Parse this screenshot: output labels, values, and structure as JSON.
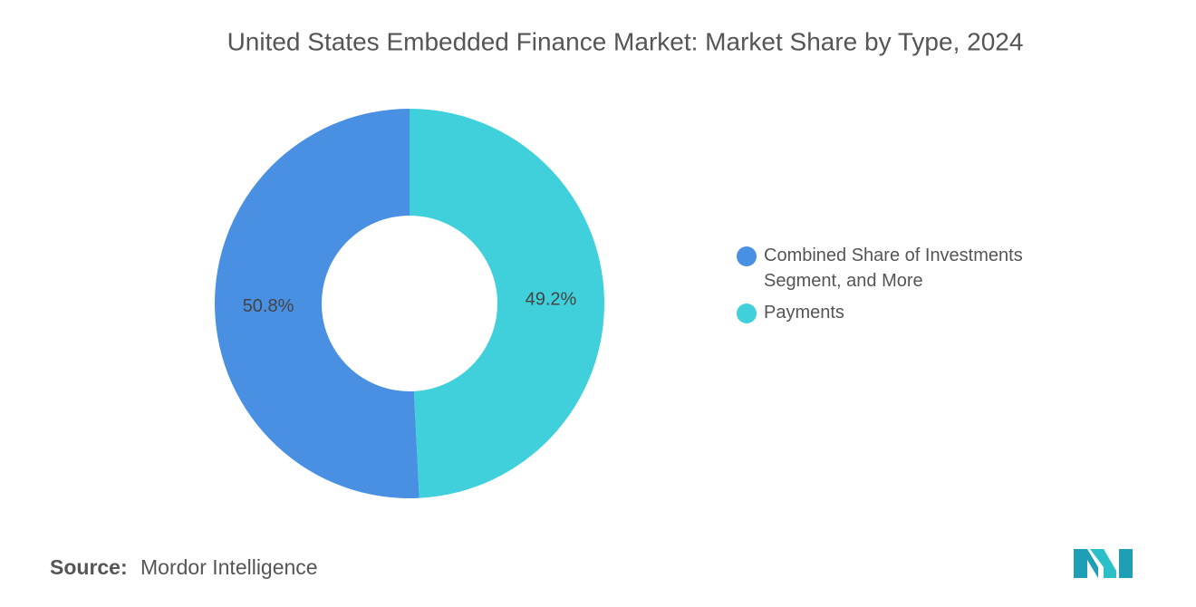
{
  "chart_data": {
    "type": "pie",
    "donut": true,
    "title": "United States Embedded Finance Market: Market Share by Type, 2024",
    "categories": [
      "Combined Share of Investments Segment, and More",
      "Payments"
    ],
    "values": [
      50.8,
      49.2
    ],
    "value_labels": [
      "50.8%",
      "49.2%"
    ],
    "colors": [
      "#4a90e2",
      "#40d0db"
    ],
    "source_label": "Source:",
    "source": "Mordor Intelligence"
  }
}
